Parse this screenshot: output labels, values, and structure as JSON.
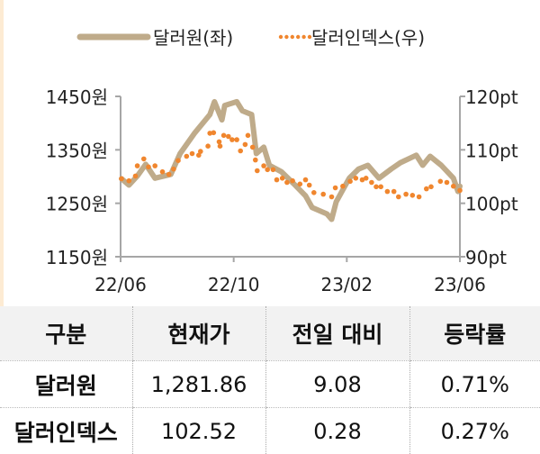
{
  "chart_data": {
    "type": "line",
    "legend": {
      "position": "top",
      "entries": [
        "달러원(좌)",
        "달러인덱스(우)"
      ]
    },
    "x_ticks": [
      "22/06",
      "22/10",
      "23/02",
      "23/06"
    ],
    "x_range": [
      "2022-06-01",
      "2023-06-01"
    ],
    "y_left": {
      "ticks": [
        "1450원",
        "1350원",
        "1250원",
        "1150원"
      ],
      "range": [
        1150,
        1450
      ]
    },
    "y_right": {
      "ticks": [
        "120pt",
        "110pt",
        "100pt",
        "90pt"
      ],
      "range": [
        90,
        120
      ]
    },
    "grid": false,
    "series": [
      {
        "name": "달러원(좌)",
        "axis": "left",
        "style": "solid",
        "color": "#bfab8a",
        "x": [
          "2022-06-02",
          "2022-06-10",
          "2022-06-19",
          "2022-06-28",
          "2022-07-08",
          "2022-07-25",
          "2022-08-04",
          "2022-08-20",
          "2022-09-05",
          "2022-09-10",
          "2022-09-18",
          "2022-09-21",
          "2022-10-04",
          "2022-10-10",
          "2022-10-20",
          "2022-10-25",
          "2022-11-02",
          "2022-11-08",
          "2022-11-21",
          "2022-12-04",
          "2022-12-17",
          "2022-12-24",
          "2023-01-09",
          "2023-01-14",
          "2023-01-19",
          "2023-02-02",
          "2023-02-12",
          "2023-02-22",
          "2023-03-06",
          "2023-03-19",
          "2023-03-29",
          "2023-04-15",
          "2023-04-22",
          "2023-04-30",
          "2023-05-12",
          "2023-05-25",
          "2023-05-30",
          "2023-06-01"
        ],
        "values": [
          1296,
          1284,
          1301,
          1323,
          1297,
          1304,
          1343,
          1382,
          1416,
          1440,
          1406,
          1433,
          1440,
          1423,
          1416,
          1343,
          1355,
          1321,
          1309,
          1287,
          1264,
          1242,
          1230,
          1220,
          1253,
          1297,
          1314,
          1321,
          1297,
          1314,
          1326,
          1340,
          1321,
          1338,
          1321,
          1297,
          1272,
          1282
        ]
      },
      {
        "name": "달러인덱스(우)",
        "axis": "right",
        "style": "dotted",
        "color": "#f0862e",
        "x": [
          "2022-06-02",
          "2022-06-10",
          "2022-06-17",
          "2022-06-19",
          "2022-06-26",
          "2022-07-01",
          "2022-07-08",
          "2022-07-16",
          "2022-07-23",
          "2022-07-28",
          "2022-08-02",
          "2022-08-11",
          "2022-08-17",
          "2022-08-24",
          "2022-08-26",
          "2022-09-03",
          "2022-09-05",
          "2022-09-09",
          "2022-09-15",
          "2022-09-16",
          "2022-09-20",
          "2022-09-25",
          "2022-09-29",
          "2022-10-04",
          "2022-10-08",
          "2022-10-13",
          "2022-10-16",
          "2022-10-21",
          "2022-10-24",
          "2022-10-26",
          "2022-11-02",
          "2022-11-06",
          "2022-11-12",
          "2022-11-16",
          "2022-11-22",
          "2022-11-27",
          "2022-12-03",
          "2022-12-11",
          "2022-12-17",
          "2022-12-21",
          "2022-12-26",
          "2023-01-05",
          "2023-01-14",
          "2023-01-18",
          "2023-01-26",
          "2023-02-03",
          "2023-02-09",
          "2023-02-16",
          "2023-02-20",
          "2023-02-26",
          "2023-03-03",
          "2023-03-08",
          "2023-03-15",
          "2023-03-22",
          "2023-03-27",
          "2023-04-04",
          "2023-04-11",
          "2023-04-18",
          "2023-04-26",
          "2023-05-01",
          "2023-05-11",
          "2023-05-18",
          "2023-05-25",
          "2023-06-01"
        ],
        "values": [
          104.6,
          104.2,
          105.1,
          107.0,
          108.3,
          106.8,
          107.0,
          105.9,
          105.4,
          106.4,
          108.0,
          108.8,
          109.3,
          109.0,
          109.7,
          110.7,
          113.1,
          113.2,
          111.5,
          110.7,
          112.7,
          112.5,
          111.9,
          111.9,
          109.8,
          111.0,
          112.7,
          110.5,
          108.1,
          106.1,
          107.0,
          106.3,
          106.3,
          104.4,
          104.7,
          103.9,
          104.2,
          103.6,
          104.4,
          103.4,
          102.0,
          101.7,
          101.2,
          102.9,
          103.2,
          104.1,
          104.7,
          104.4,
          104.7,
          103.9,
          103.1,
          103.1,
          102.2,
          102.2,
          101.2,
          101.7,
          101.5,
          101.2,
          102.7,
          103.1,
          104.1,
          103.9,
          103.2,
          102.4
        ]
      }
    ]
  },
  "table": {
    "headers": [
      "구분",
      "현재가",
      "전일 대비",
      "등락률"
    ],
    "rows": [
      [
        "달러원",
        "1,281.86",
        "9.08",
        "0.71%"
      ],
      [
        "달러인덱스",
        "102.52",
        "0.28",
        "0.27%"
      ]
    ]
  }
}
